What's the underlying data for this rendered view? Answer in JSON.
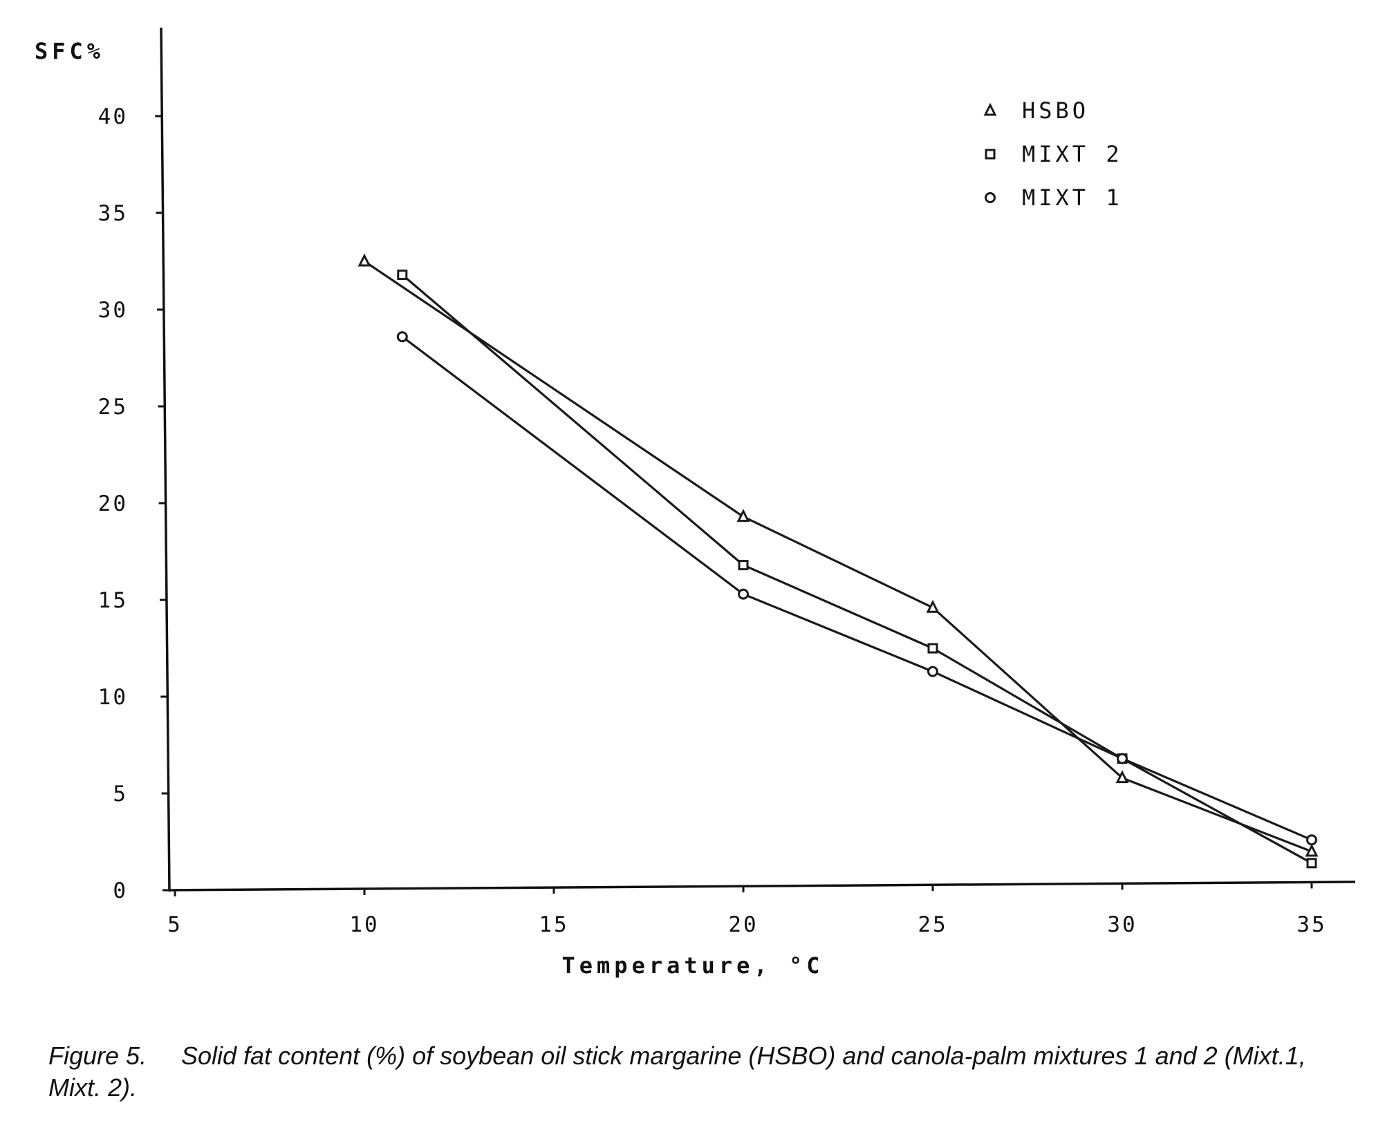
{
  "chart_data": {
    "type": "line",
    "title": "",
    "xlabel": "Temperature, °C",
    "ylabel": "SFC%",
    "xlim": [
      5,
      36.5
    ],
    "ylim": [
      0,
      45
    ],
    "xticks": [
      5,
      10,
      15,
      20,
      25,
      30,
      35
    ],
    "yticks": [
      0,
      5,
      10,
      15,
      20,
      25,
      30,
      35,
      40
    ],
    "grid": false,
    "legend_position": "top-right",
    "series": [
      {
        "name": "HSBO",
        "marker": "triangle",
        "x": [
          10,
          20,
          25,
          30,
          35
        ],
        "y": [
          32.5,
          19.3,
          14.6,
          5.8,
          2.0
        ]
      },
      {
        "name": "MIXT 2",
        "marker": "square",
        "x": [
          11,
          20,
          25,
          30,
          35
        ],
        "y": [
          31.8,
          16.8,
          12.5,
          6.8,
          1.4
        ]
      },
      {
        "name": "MIXT 1",
        "marker": "circle",
        "x": [
          11,
          20,
          25,
          30,
          35
        ],
        "y": [
          28.6,
          15.3,
          11.3,
          6.8,
          2.6
        ]
      }
    ],
    "colors": {
      "line": "#1a1a1a",
      "axis": "#111111"
    }
  },
  "figure": {
    "caption_number": "Figure 5.",
    "caption_text": "Solid  fat content (%) of soybean oil stick  margarine (HSBO) and canola-palm  mixtures 1 and 2 (Mixt.1, Mixt. 2)."
  }
}
